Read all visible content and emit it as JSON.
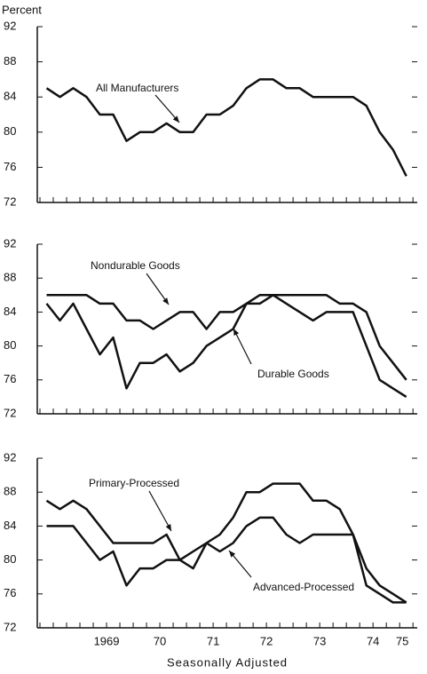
{
  "chart_data": [
    {
      "type": "line",
      "ylabel": "Percent",
      "x": [
        1968.375,
        1968.625,
        1968.875,
        1969.125,
        1969.375,
        1969.625,
        1969.875,
        1970.125,
        1970.375,
        1970.625,
        1970.875,
        1971.125,
        1971.375,
        1971.625,
        1971.875,
        1972.125,
        1972.375,
        1972.625,
        1972.875,
        1973.125,
        1973.375,
        1973.625,
        1973.875,
        1974.125,
        1974.375,
        1974.625,
        1974.875,
        1975.125
      ],
      "xlim": [
        1968.2,
        1975.33
      ],
      "ylim": [
        72,
        92
      ],
      "yticks": [
        72,
        76,
        80,
        84,
        88,
        92
      ],
      "series": [
        {
          "name": "All Manufacturers",
          "color": "#111111",
          "values": [
            85,
            84,
            85,
            84,
            82,
            82,
            79,
            80,
            80,
            81,
            80,
            80,
            82,
            82,
            83,
            85,
            86,
            86,
            85,
            85,
            84,
            84,
            84,
            84,
            83,
            80,
            78,
            75
          ]
        }
      ],
      "annotations": [
        "All Manufacturers"
      ]
    },
    {
      "type": "line",
      "x": [
        1968.375,
        1968.625,
        1968.875,
        1969.125,
        1969.375,
        1969.625,
        1969.875,
        1970.125,
        1970.375,
        1970.625,
        1970.875,
        1971.125,
        1971.375,
        1971.625,
        1971.875,
        1972.125,
        1972.375,
        1972.625,
        1972.875,
        1973.125,
        1973.375,
        1973.625,
        1973.875,
        1974.125,
        1974.375,
        1974.625,
        1974.875,
        1975.125
      ],
      "xlim": [
        1968.2,
        1975.33
      ],
      "ylim": [
        72,
        92
      ],
      "yticks": [
        72,
        76,
        80,
        84,
        88,
        92
      ],
      "series": [
        {
          "name": "Nondurable Goods",
          "color": "#111111",
          "values": [
            86,
            86,
            86,
            86,
            85,
            85,
            83,
            83,
            82,
            83,
            84,
            84,
            82,
            84,
            84,
            85,
            85,
            86,
            86,
            86,
            86,
            86,
            85,
            85,
            84,
            80,
            78,
            76
          ]
        },
        {
          "name": "Durable Goods",
          "color": "#111111",
          "values": [
            85,
            83,
            85,
            82,
            79,
            81,
            75,
            78,
            78,
            79,
            77,
            78,
            80,
            81,
            82,
            85,
            86,
            86,
            85,
            84,
            83,
            84,
            84,
            84,
            80,
            76,
            75,
            74
          ]
        }
      ],
      "annotations": [
        "Nondurable Goods",
        "Durable Goods"
      ]
    },
    {
      "type": "line",
      "x": [
        1968.375,
        1968.625,
        1968.875,
        1969.125,
        1969.375,
        1969.625,
        1969.875,
        1970.125,
        1970.375,
        1970.625,
        1970.875,
        1971.125,
        1971.375,
        1971.625,
        1971.875,
        1972.125,
        1972.375,
        1972.625,
        1972.875,
        1973.125,
        1973.375,
        1973.625,
        1973.875,
        1974.125,
        1974.375,
        1974.625,
        1974.875,
        1975.125
      ],
      "xlim": [
        1968.2,
        1975.33
      ],
      "ylim": [
        72,
        92
      ],
      "yticks": [
        72,
        76,
        80,
        84,
        88,
        92
      ],
      "xticks": [
        {
          "value": 1969.5,
          "label": "1969"
        },
        {
          "value": 1970.5,
          "label": "70"
        },
        {
          "value": 1971.5,
          "label": "71"
        },
        {
          "value": 1972.5,
          "label": "72"
        },
        {
          "value": 1973.5,
          "label": "73"
        },
        {
          "value": 1974.5,
          "label": "74"
        },
        {
          "value": 1975.05,
          "label": "75"
        }
      ],
      "xminorticks": [
        1968.25,
        1968.5,
        1968.75,
        1969,
        1969.25,
        1969.5,
        1969.75,
        1970,
        1970.25,
        1970.5,
        1970.75,
        1971,
        1971.25,
        1971.5,
        1971.75,
        1972,
        1972.25,
        1972.5,
        1972.75,
        1973,
        1973.25,
        1973.5,
        1973.75,
        1974,
        1974.25,
        1974.5,
        1974.75,
        1975,
        1975.25
      ],
      "xlabel": "Seasonally Adjusted",
      "series": [
        {
          "name": "Primary-Processed",
          "color": "#111111",
          "values": [
            87,
            86,
            87,
            86,
            84,
            82,
            82,
            82,
            82,
            83,
            80,
            79,
            82,
            83,
            85,
            88,
            88,
            89,
            89,
            89,
            87,
            87,
            86,
            83,
            79,
            77,
            76,
            75
          ]
        },
        {
          "name": "Advanced-Processed",
          "color": "#111111",
          "values": [
            84,
            84,
            84,
            82,
            80,
            81,
            77,
            79,
            79,
            80,
            80,
            81,
            82,
            81,
            82,
            84,
            85,
            85,
            83,
            82,
            83,
            83,
            83,
            83,
            77,
            76,
            75,
            75
          ]
        }
      ],
      "annotations": [
        "Primary-Processed",
        "Advanced-Processed"
      ]
    }
  ]
}
